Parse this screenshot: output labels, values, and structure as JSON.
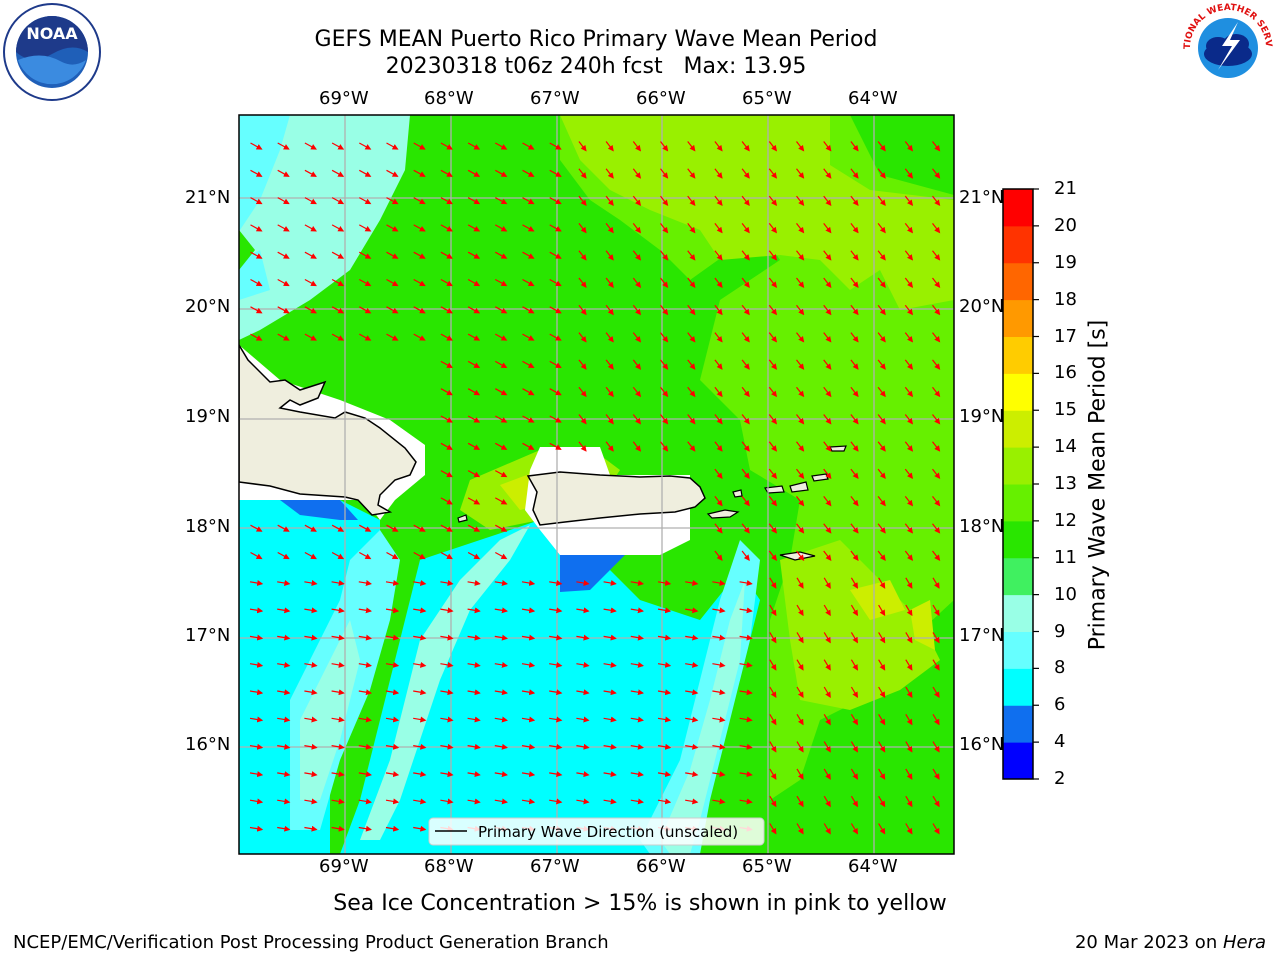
{
  "title": {
    "line1": "GEFS MEAN Puerto Rico Primary Wave Mean Period",
    "line2": "20230318 t06z 240h fcst   Max: 13.95"
  },
  "map": {
    "lon_labels": [
      "69°W",
      "68°W",
      "67°W",
      "66°W",
      "65°W",
      "64°W"
    ],
    "lat_labels": [
      "21°N",
      "20°N",
      "19°N",
      "18°N",
      "17°N",
      "16°N"
    ],
    "legend": "Primary Wave Direction (unscaled)",
    "arrow_color": "#ff0000",
    "land_color": "#efeede",
    "grid": true
  },
  "colorbar": {
    "label": "Primary Wave Mean Period [s]",
    "ticks": [
      "2",
      "4",
      "6",
      "8",
      "9",
      "10",
      "11",
      "12",
      "13",
      "14",
      "15",
      "16",
      "17",
      "18",
      "19",
      "20",
      "21"
    ],
    "colors": [
      "#0000ff",
      "#0f6fef",
      "#00ffff",
      "#66ffff",
      "#99ffe6",
      "#40f060",
      "#29e600",
      "#66f000",
      "#99f000",
      "#ccee00",
      "#ffff00",
      "#ffcc00",
      "#ff9900",
      "#ff6600",
      "#ff3300",
      "#ff0000"
    ]
  },
  "subtitle": "Sea Ice Concentration > 15% is shown in pink to yellow",
  "footer": {
    "left": "NCEP/EMC/Verification Post Processing Product Generation Branch",
    "date": "20 Mar 2023 on ",
    "machine": "Hera"
  },
  "logos": {
    "noaa": "NOAA",
    "nws": "NATIONAL WEATHER SERVICE"
  }
}
